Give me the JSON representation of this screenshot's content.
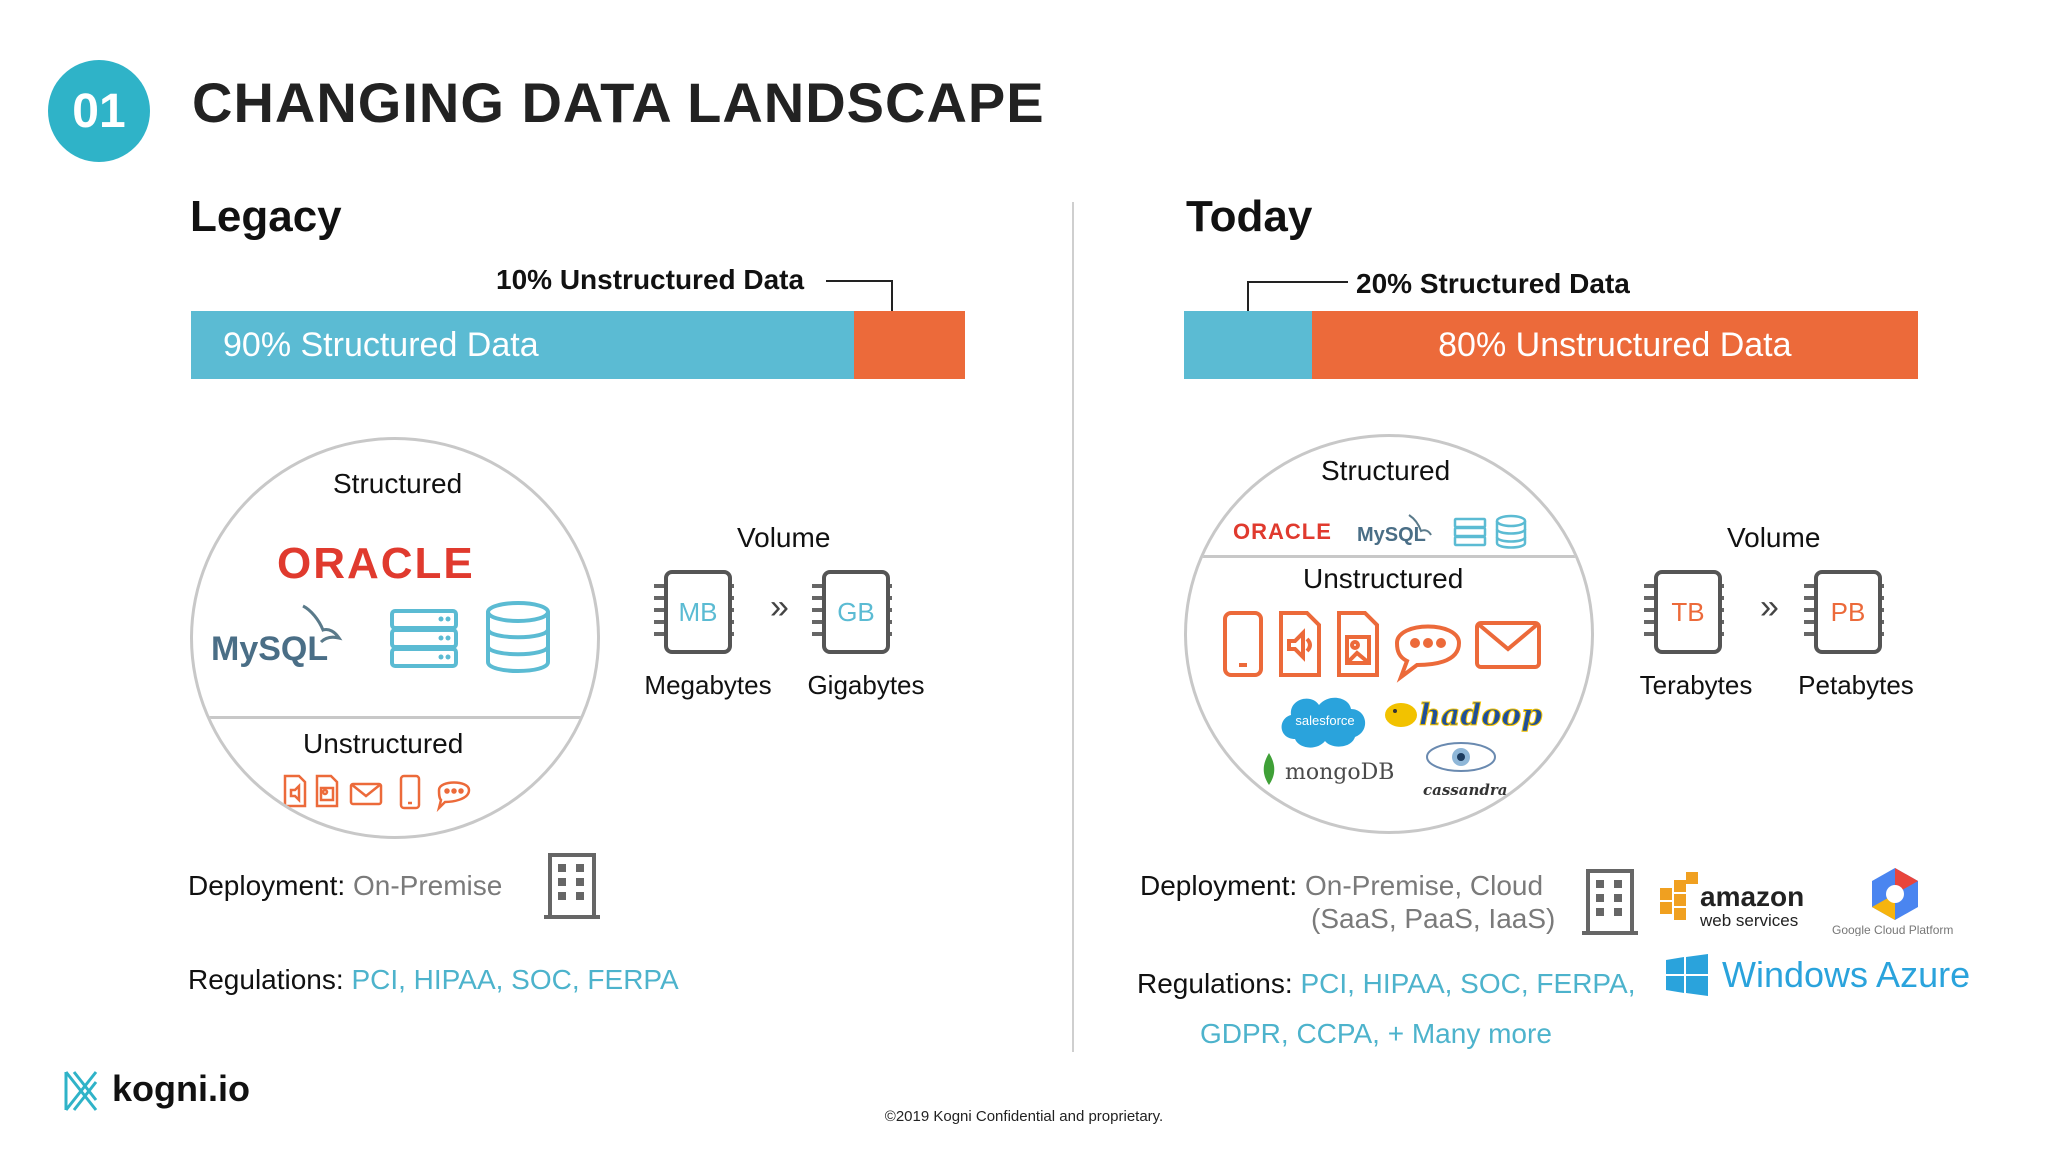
{
  "slide": {
    "number": "01",
    "title": "CHANGING DATA LANDSCAPE"
  },
  "legacy": {
    "heading": "Legacy",
    "callout": "10% Unstructured Data",
    "bar_label": "90% Structured Data",
    "structured_pct": 90,
    "circle": {
      "structured_label": "Structured",
      "unstructured_label": "Unstructured",
      "oracle": "ORACLE",
      "mysql": "MySQL"
    },
    "volume": {
      "label": "Volume",
      "from_unit": "MB",
      "to_unit": "GB",
      "from_caption": "Megabytes",
      "to_caption": "Gigabytes"
    },
    "deployment": {
      "label": "Deployment:",
      "value": "On-Premise"
    },
    "regulations": {
      "label": "Regulations:",
      "value": "PCI, HIPAA, SOC, FERPA"
    }
  },
  "today": {
    "heading": "Today",
    "callout": "20% Structured Data",
    "bar_label": "80% Unstructured Data",
    "structured_pct": 20,
    "circle": {
      "structured_label": "Structured",
      "unstructured_label": "Unstructured",
      "oracle": "ORACLE",
      "mysql": "MySQL",
      "salesforce": "salesforce",
      "hadoop": "hadoop",
      "mongodb": "mongoDB",
      "cassandra": "cassandra"
    },
    "volume": {
      "label": "Volume",
      "from_unit": "TB",
      "to_unit": "PB",
      "from_caption": "Terabytes",
      "to_caption": "Petabytes"
    },
    "deployment": {
      "label": "Deployment:",
      "value_line1": "On-Premise, Cloud",
      "value_line2": "(SaaS, PaaS, IaaS)"
    },
    "regulations": {
      "label": "Regulations:",
      "value_line1": "PCI, HIPAA, SOC, FERPA,",
      "value_line2": "GDPR, CCPA, + Many more"
    },
    "cloud_logos": {
      "amazon": "amazon",
      "aws_sub": "web services",
      "google": "Google Cloud Platform",
      "azure": "Windows Azure"
    }
  },
  "brand": {
    "logo_text": "kogni.io"
  },
  "footer": "©2019 Kogni Confidential and proprietary.",
  "colors": {
    "teal": "#2fb3c8",
    "blue": "#5bbbd3",
    "orange": "#ec6a3a",
    "red": "#e03a2e"
  }
}
